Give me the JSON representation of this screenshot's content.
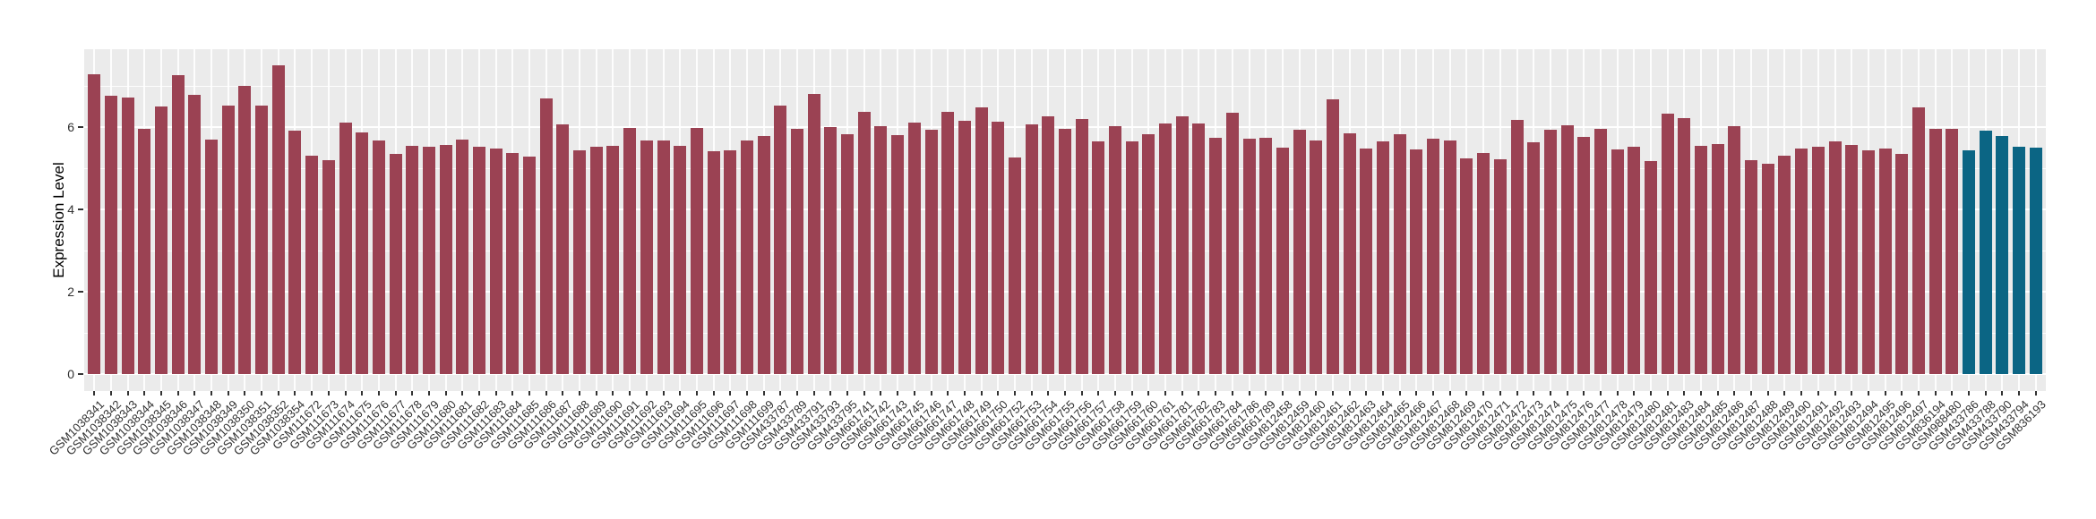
{
  "chart_data": {
    "type": "bar",
    "title": "",
    "xlabel": "",
    "ylabel": "Expression Level",
    "ylim": [
      0,
      7.88
    ],
    "yticks": [
      0,
      2,
      4,
      6
    ],
    "minor_gridlines": [
      1,
      3,
      5,
      7
    ],
    "grid": true,
    "legend": "none",
    "panel_background": "#EBEBEB",
    "gridline_color": "#FFFFFF",
    "bar_groups": [
      {
        "name": "samples-default",
        "color": "#9B4253",
        "count": 112
      },
      {
        "name": "samples-highlighted",
        "color": "#0B6584",
        "count": 5
      }
    ],
    "categories": [
      "GSM1038341",
      "GSM1038342",
      "GSM1038343",
      "GSM1038344",
      "GSM1038345",
      "GSM1038346",
      "GSM1038347",
      "GSM1038348",
      "GSM1038349",
      "GSM1038350",
      "GSM1038351",
      "GSM1038352",
      "GSM1038354",
      "GSM111672",
      "GSM111673",
      "GSM111674",
      "GSM111675",
      "GSM111676",
      "GSM111677",
      "GSM111678",
      "GSM111679",
      "GSM111680",
      "GSM111681",
      "GSM111682",
      "GSM111683",
      "GSM111684",
      "GSM111685",
      "GSM111686",
      "GSM111687",
      "GSM111688",
      "GSM111689",
      "GSM111690",
      "GSM111691",
      "GSM111692",
      "GSM111693",
      "GSM111694",
      "GSM111695",
      "GSM111696",
      "GSM111697",
      "GSM111698",
      "GSM111699",
      "GSM433787",
      "GSM433789",
      "GSM433791",
      "GSM433793",
      "GSM433795",
      "GSM661741",
      "GSM661742",
      "GSM661743",
      "GSM661745",
      "GSM661746",
      "GSM661747",
      "GSM661748",
      "GSM661749",
      "GSM661750",
      "GSM661752",
      "GSM661753",
      "GSM661754",
      "GSM661755",
      "GSM661756",
      "GSM661757",
      "GSM661758",
      "GSM661759",
      "GSM661760",
      "GSM661761",
      "GSM661781",
      "GSM661782",
      "GSM661783",
      "GSM661784",
      "GSM661786",
      "GSM661789",
      "GSM812458",
      "GSM812459",
      "GSM812460",
      "GSM812461",
      "GSM812462",
      "GSM812463",
      "GSM812464",
      "GSM812465",
      "GSM812466",
      "GSM812467",
      "GSM812468",
      "GSM812469",
      "GSM812470",
      "GSM812471",
      "GSM812472",
      "GSM812473",
      "GSM812474",
      "GSM812475",
      "GSM812476",
      "GSM812477",
      "GSM812478",
      "GSM812479",
      "GSM812480",
      "GSM812481",
      "GSM812483",
      "GSM812484",
      "GSM812485",
      "GSM812486",
      "GSM812487",
      "GSM812488",
      "GSM812489",
      "GSM812490",
      "GSM812491",
      "GSM812492",
      "GSM812493",
      "GSM812494",
      "GSM812495",
      "GSM812496",
      "GSM812497",
      "GSM836194",
      "GSM988480",
      "GSM433786",
      "GSM433788",
      "GSM433790",
      "GSM433794",
      "GSM836193"
    ],
    "values": [
      7.28,
      6.76,
      6.71,
      5.95,
      6.49,
      7.26,
      6.77,
      5.69,
      6.52,
      6.99,
      6.52,
      7.48,
      5.91,
      5.3,
      5.19,
      6.11,
      5.87,
      5.66,
      5.34,
      5.53,
      5.52,
      5.55,
      5.69,
      5.52,
      5.47,
      5.36,
      5.28,
      6.68,
      6.05,
      5.44,
      5.52,
      5.54,
      5.97,
      5.67,
      5.67,
      5.54,
      5.97,
      5.4,
      5.44,
      5.67,
      5.77,
      6.51,
      5.96,
      6.79,
      5.99,
      5.83,
      6.36,
      6.02,
      5.8,
      6.1,
      5.92,
      6.36,
      6.15,
      6.48,
      6.12,
      5.26,
      6.06,
      6.25,
      5.96,
      6.18,
      5.65,
      6.02,
      5.65,
      5.83,
      6.09,
      6.26,
      6.09,
      5.73,
      6.34,
      5.71,
      5.74,
      5.49,
      5.92,
      5.67,
      6.67,
      5.85,
      5.47,
      5.65,
      5.82,
      5.45,
      5.71,
      5.67,
      5.24,
      5.37,
      5.21,
      6.17,
      5.63,
      5.93,
      6.03,
      5.75,
      5.95,
      5.45,
      5.51,
      5.16,
      6.32,
      6.2,
      5.54,
      5.59,
      6.02,
      5.19,
      5.11,
      5.31,
      5.47,
      5.52,
      5.64,
      5.57,
      5.44,
      5.47,
      5.35,
      6.46,
      5.94,
      5.94,
      5.44,
      5.91,
      5.77,
      5.51,
      5.49
    ]
  },
  "colors": {
    "bar_default": "#9B4253",
    "bar_highlight": "#0B6584",
    "panel_bg": "#EBEBEB",
    "grid": "#FFFFFF",
    "tick": "#333333",
    "axis_text": "#303030",
    "axis_title": "#000000"
  }
}
